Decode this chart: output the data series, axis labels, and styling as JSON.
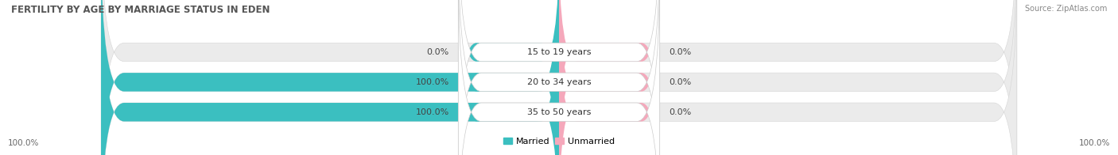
{
  "title": "FERTILITY BY AGE BY MARRIAGE STATUS IN EDEN",
  "source": "Source: ZipAtlas.com",
  "categories": [
    "15 to 19 years",
    "20 to 34 years",
    "35 to 50 years"
  ],
  "married_values": [
    0.0,
    100.0,
    100.0
  ],
  "unmarried_values": [
    0.0,
    0.0,
    0.0
  ],
  "married_color": "#3bbfc0",
  "unmarried_color": "#f5a8bb",
  "bar_bg_color": "#ebebeb",
  "bar_gap_color": "#ffffff",
  "legend_married": "Married",
  "legend_unmarried": "Unmarried",
  "left_axis_label": "100.0%",
  "right_axis_label": "100.0%",
  "title_fontsize": 8.5,
  "label_fontsize": 8,
  "tick_fontsize": 7.5,
  "source_fontsize": 7
}
